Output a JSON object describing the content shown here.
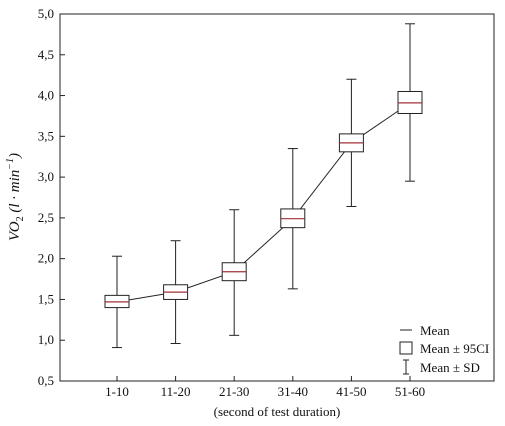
{
  "chart_data": {
    "type": "box",
    "xlabel": "(second of test duration)",
    "ylabel": "VO2 (l·min−1)",
    "ylabel_parts": {
      "main": "VO",
      "sub": "2",
      "paren_open": " (l · min",
      "sup": "−1",
      "paren_close": ")"
    },
    "categories": [
      "1-10",
      "11-20",
      "21-30",
      "31-40",
      "41-50",
      "51-60"
    ],
    "mean": [
      1.47,
      1.59,
      1.84,
      2.49,
      3.42,
      3.91
    ],
    "ci_low": [
      1.4,
      1.5,
      1.73,
      2.38,
      3.31,
      3.78
    ],
    "ci_high": [
      1.55,
      1.68,
      1.95,
      2.61,
      3.53,
      4.05
    ],
    "sd_low": [
      0.91,
      0.96,
      1.06,
      1.63,
      2.64,
      2.95
    ],
    "sd_high": [
      2.03,
      2.22,
      2.6,
      3.35,
      4.2,
      4.88
    ],
    "ylim": [
      0.5,
      5.0
    ],
    "yticks": [
      "0,5",
      "1,0",
      "1,5",
      "2,0",
      "2,5",
      "3,0",
      "3,5",
      "4,0",
      "4,5",
      "5,0"
    ],
    "grid": false,
    "legend_position": "bottom-right",
    "legend": [
      "Mean",
      "Mean ± 95CI",
      "Mean ± SD"
    ],
    "colors": {
      "mean_line": "#a0303a",
      "axis": "#222222",
      "box": "#222222",
      "box_fill": "#ffffff"
    }
  }
}
